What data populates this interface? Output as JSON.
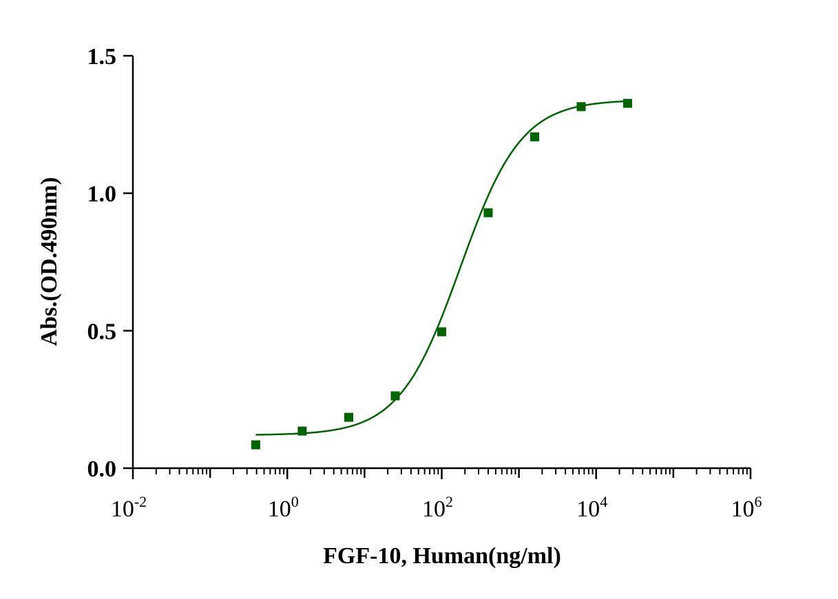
{
  "chart_data": {
    "type": "scatter",
    "title": "",
    "xlabel": "FGF-10, Human(ng/ml)",
    "ylabel": "Abs.(OD.490nm)",
    "xscale": "log",
    "xlim": [
      0.01,
      1000000
    ],
    "ylim": [
      0,
      1.5
    ],
    "x_ticks": [
      {
        "base": "10",
        "exp": "-2",
        "value": 0.01
      },
      {
        "base": "10",
        "exp": "0",
        "value": 1
      },
      {
        "base": "10",
        "exp": "2",
        "value": 100
      },
      {
        "base": "10",
        "exp": "4",
        "value": 10000
      },
      {
        "base": "10",
        "exp": "6",
        "value": 1000000
      }
    ],
    "y_ticks": [
      {
        "label": "0.0",
        "value": 0
      },
      {
        "label": "0.5",
        "value": 0.5
      },
      {
        "label": "1.0",
        "value": 1.0
      },
      {
        "label": "1.5",
        "value": 1.5
      }
    ],
    "grid": false,
    "series": [
      {
        "name": "FGF-10",
        "color": "#006400",
        "marker": "square",
        "x": [
          0.39,
          1.56,
          6.25,
          25,
          100,
          400,
          1600,
          6400,
          25600
        ],
        "y": [
          0.085,
          0.135,
          0.185,
          0.263,
          0.496,
          0.929,
          1.205,
          1.315,
          1.327
        ]
      }
    ],
    "fit": {
      "model": "4PL",
      "bottom": 0.12,
      "top": 1.34,
      "ec50": 174,
      "hill": 1.1,
      "xrange": [
        0.39,
        25600
      ]
    }
  }
}
